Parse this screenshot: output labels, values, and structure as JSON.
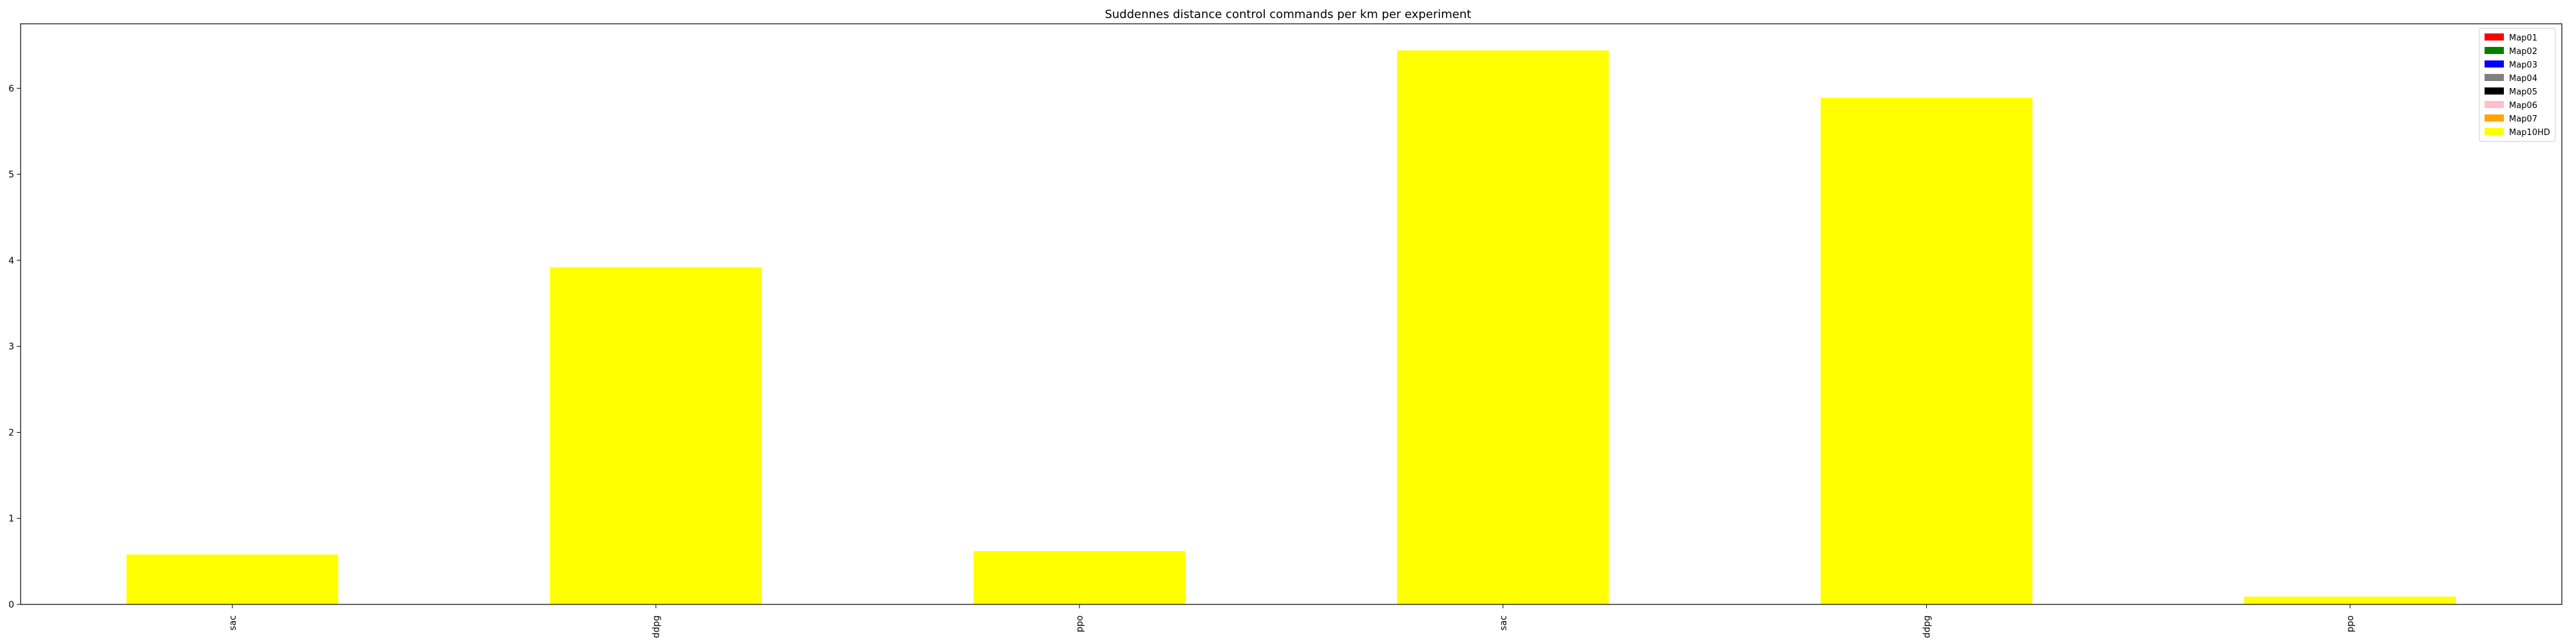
{
  "chart_data": {
    "type": "bar",
    "title": "Suddennes distance control commands per km per experiment",
    "xlabel": "",
    "ylabel": "",
    "categories": [
      "sac",
      "ddpg",
      "ppo",
      "sac",
      "ddpg",
      "ppo"
    ],
    "ylim": [
      0,
      6.75
    ],
    "yticks": [
      0,
      1,
      2,
      3,
      4,
      5,
      6
    ],
    "grid": false,
    "stacked": true,
    "legend_position": "top-right",
    "series": [
      {
        "name": "Map01",
        "color": "#ff0000",
        "values": [
          0,
          0,
          0,
          0,
          0,
          0
        ]
      },
      {
        "name": "Map02",
        "color": "#008000",
        "values": [
          0,
          0,
          0,
          0,
          0,
          0
        ]
      },
      {
        "name": "Map03",
        "color": "#0000ff",
        "values": [
          0,
          0,
          0,
          0,
          0,
          0
        ]
      },
      {
        "name": "Map04",
        "color": "#808080",
        "values": [
          0,
          0,
          0,
          0,
          0,
          0
        ]
      },
      {
        "name": "Map05",
        "color": "#000000",
        "values": [
          0,
          0,
          0,
          0,
          0,
          0
        ]
      },
      {
        "name": "Map06",
        "color": "#ffc0cb",
        "values": [
          0,
          0,
          0,
          0,
          0,
          0
        ]
      },
      {
        "name": "Map07",
        "color": "#ffa500",
        "values": [
          0,
          0,
          0,
          0,
          0,
          0
        ]
      },
      {
        "name": "Map10HD",
        "color": "#ffff00",
        "values": [
          0.58,
          3.92,
          0.62,
          6.44,
          5.89,
          0.09
        ]
      }
    ]
  }
}
